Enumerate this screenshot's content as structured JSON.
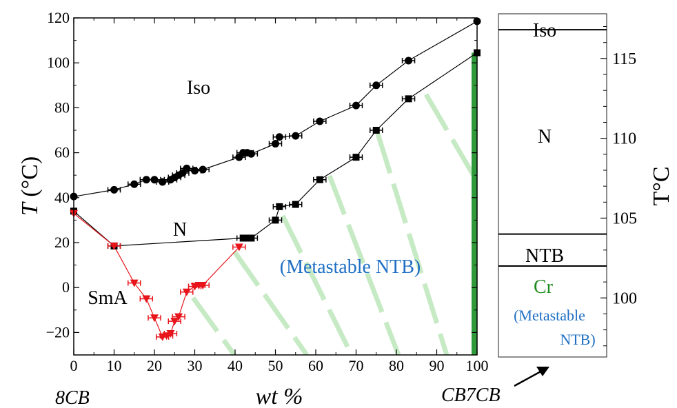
{
  "colors": {
    "iso_markers": "#000000",
    "ntb_markers": "#000000",
    "sma_markers": "#e8141b",
    "hatch": "#c6eac4",
    "cr_bar": "#2f9a3a",
    "metastable_text": "#1f6fc4",
    "cr_text": "#1e8a1e"
  },
  "chart_data": [
    {
      "type": "scatter",
      "xlim": [
        0,
        100
      ],
      "ylim": [
        -30,
        120
      ],
      "x_ticks": [
        "0",
        "10",
        "20",
        "30",
        "40",
        "50",
        "60",
        "70",
        "80",
        "90",
        "100"
      ],
      "y_ticks": [
        "−20",
        "0",
        "20",
        "40",
        "60",
        "80",
        "100",
        "120"
      ],
      "xlabel": "wt %",
      "ylabel_var": "T",
      "ylabel_unit": " (°C)",
      "x_end_labels": {
        "left": "8CB",
        "right": "CB7CB"
      },
      "region_labels": {
        "iso": "Iso",
        "n": "N",
        "sma": "SmA",
        "metastable": "(Metastable NTB)"
      },
      "series": [
        {
          "marker": "circle",
          "points": [
            [
              0,
              40.5
            ],
            [
              10,
              43.5
            ],
            [
              15,
              46
            ],
            [
              18,
              48
            ],
            [
              20,
              48
            ],
            [
              22,
              47
            ],
            [
              24,
              48
            ],
            [
              25,
              49
            ],
            [
              26,
              50
            ],
            [
              27,
              51
            ],
            [
              28,
              53
            ],
            [
              30,
              52
            ],
            [
              32,
              52.5
            ],
            [
              41,
              58
            ],
            [
              42,
              60
            ],
            [
              43,
              60
            ],
            [
              44,
              59.5
            ],
            [
              50,
              64
            ],
            [
              51,
              67
            ],
            [
              55,
              67.5
            ],
            [
              61,
              74
            ],
            [
              70,
              81
            ],
            [
              75,
              90
            ],
            [
              83,
              101
            ],
            [
              100,
              118.5
            ]
          ]
        },
        {
          "marker": "square",
          "points": [
            [
              0,
              34
            ],
            [
              10,
              18.5
            ],
            [
              42,
              22
            ],
            [
              43,
              22
            ],
            [
              44,
              22
            ],
            [
              50,
              30
            ],
            [
              51,
              36
            ],
            [
              55,
              37
            ],
            [
              61,
              48
            ],
            [
              70,
              58
            ],
            [
              75,
              70
            ],
            [
              83,
              84
            ],
            [
              100,
              104.5
            ]
          ]
        },
        {
          "marker": "triangle-down",
          "points": [
            [
              0,
              33
            ],
            [
              10,
              18.5
            ],
            [
              15,
              2
            ],
            [
              18,
              -5
            ],
            [
              20,
              -13.5
            ],
            [
              22,
              -22
            ],
            [
              23,
              -21.5
            ],
            [
              24,
              -20.5
            ],
            [
              25,
              -15
            ],
            [
              26,
              -13
            ],
            [
              28,
              -2
            ],
            [
              30,
              0.5
            ],
            [
              31,
              1
            ],
            [
              32,
              1
            ],
            [
              41,
              18
            ]
          ]
        }
      ]
    },
    {
      "type": "table",
      "ylabel": "T°C",
      "y_ticks": [
        "100",
        "105",
        "110",
        "115"
      ],
      "ylim": [
        96.3,
        117.8
      ],
      "levels": [
        {
          "name": "Iso",
          "t": 116.8
        },
        {
          "name": "NTB",
          "t": 104.0
        },
        {
          "name": "Cr",
          "t": 102.0
        }
      ],
      "labels": {
        "iso": "Iso",
        "n": "N",
        "ntb": "NTB",
        "cr": "Cr",
        "metastable_line1": "(Metastable",
        "metastable_line2": "NTB)"
      }
    }
  ]
}
